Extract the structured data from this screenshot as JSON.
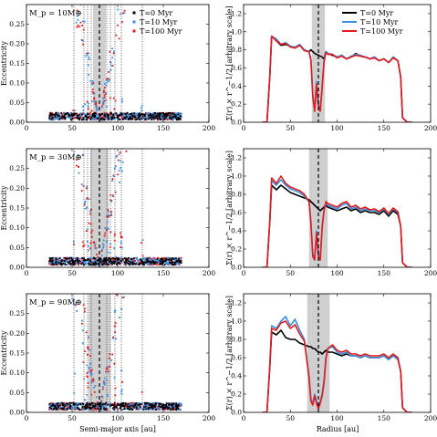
{
  "figure": {
    "left_xlabel": "Semi-major axis [au]",
    "right_xlabel": "Radius [au]",
    "left_ylabel": "Eccentricity",
    "right_ylabel": "Σ(r) × r^−1/2 [arbitrary scale]"
  },
  "colors": {
    "t0": "#000000",
    "t10": "#3b8fe0",
    "t100": "#e41a1c",
    "band": "#cfcfcf"
  },
  "chart_data": [
    {
      "type": "scatter",
      "panel_label": "M_p = 10M⊕",
      "xlim": [
        0,
        200
      ],
      "ylim": [
        0,
        0.3
      ],
      "xticks": [
        "0",
        "50",
        "100",
        "150",
        "200"
      ],
      "yticks": [
        "0.00",
        "0.05",
        "0.10",
        "0.15",
        "0.20",
        "0.25"
      ],
      "planet_a": 80,
      "band": [
        73,
        87
      ],
      "resonances": [
        52,
        63,
        67,
        71,
        88,
        92,
        97,
        104,
        127
      ],
      "legend": [
        "T=0 Myr",
        "T=10 Myr",
        "T=100 Myr"
      ],
      "series": [
        {
          "name": "T=0 Myr",
          "x_range": [
            25,
            170
          ],
          "e_base": 0.02
        },
        {
          "name": "T=10 Myr",
          "x_range": [
            25,
            170
          ],
          "e_base": 0.02
        },
        {
          "name": "T=100 Myr",
          "x_range": [
            25,
            170
          ],
          "e_base": 0.02
        }
      ]
    },
    {
      "type": "line",
      "xlim": [
        0,
        200
      ],
      "ylim": [
        0,
        1.3
      ],
      "xticks": [
        "0",
        "50",
        "100",
        "150",
        "200"
      ],
      "yticks": [
        "0.0",
        "0.2",
        "0.4",
        "0.6",
        "0.8",
        "1.0",
        "1.2"
      ],
      "planet_a": 80,
      "band": [
        73,
        87
      ],
      "legend": [
        "T=0 Myr",
        "T=10 Myr",
        "T=100 Myr"
      ],
      "x": [
        20,
        25,
        28,
        30,
        35,
        40,
        45,
        50,
        55,
        60,
        65,
        70,
        72,
        74,
        76,
        78,
        80,
        82,
        84,
        86,
        88,
        90,
        95,
        100,
        105,
        110,
        115,
        120,
        125,
        130,
        135,
        140,
        145,
        150,
        155,
        160,
        165,
        168,
        170,
        175,
        180
      ],
      "series": [
        {
          "name": "T=0 Myr",
          "values": [
            0,
            0,
            0.5,
            0.95,
            0.9,
            0.85,
            0.86,
            0.84,
            0.82,
            0.85,
            0.8,
            0.78,
            0.8,
            0.78,
            0.76,
            0.75,
            0.74,
            0.73,
            0.72,
            0.7,
            0.78,
            0.76,
            0.74,
            0.72,
            0.74,
            0.7,
            0.72,
            0.76,
            0.73,
            0.72,
            0.7,
            0.72,
            0.68,
            0.7,
            0.66,
            0.72,
            0.68,
            0.5,
            0.05,
            0,
            0
          ]
        },
        {
          "name": "T=10 Myr",
          "values": [
            0,
            0,
            0.5,
            0.95,
            0.92,
            0.86,
            0.88,
            0.84,
            0.83,
            0.86,
            0.8,
            0.78,
            0.7,
            0.3,
            0.15,
            0.45,
            0.2,
            0.15,
            0.4,
            0.68,
            0.78,
            0.76,
            0.75,
            0.72,
            0.74,
            0.7,
            0.73,
            0.75,
            0.74,
            0.72,
            0.7,
            0.72,
            0.68,
            0.7,
            0.66,
            0.72,
            0.68,
            0.5,
            0.05,
            0,
            0
          ]
        },
        {
          "name": "T=100 Myr",
          "values": [
            0,
            0,
            0.5,
            0.95,
            0.9,
            0.86,
            0.87,
            0.83,
            0.82,
            0.85,
            0.79,
            0.78,
            0.68,
            0.28,
            0.12,
            0.42,
            0.18,
            0.12,
            0.38,
            0.66,
            0.77,
            0.75,
            0.75,
            0.71,
            0.73,
            0.7,
            0.72,
            0.74,
            0.73,
            0.72,
            0.7,
            0.71,
            0.68,
            0.7,
            0.66,
            0.71,
            0.68,
            0.5,
            0.05,
            0,
            0
          ]
        }
      ]
    },
    {
      "type": "scatter",
      "panel_label": "M_p = 30M⊕",
      "xlim": [
        0,
        200
      ],
      "ylim": [
        0,
        0.3
      ],
      "xticks": [
        "0",
        "50",
        "100",
        "150",
        "200"
      ],
      "yticks": [
        "0.00",
        "0.05",
        "0.10",
        "0.15",
        "0.20",
        "0.25"
      ],
      "planet_a": 80,
      "band": [
        70,
        90
      ],
      "resonances": [
        52,
        63,
        67,
        71,
        88,
        92,
        97,
        104,
        127
      ],
      "series": [
        {
          "name": "T=0 Myr",
          "x_range": [
            25,
            170
          ],
          "e_base": 0.02
        },
        {
          "name": "T=10 Myr",
          "x_range": [
            25,
            170
          ],
          "e_base": 0.02
        },
        {
          "name": "T=100 Myr",
          "x_range": [
            25,
            170
          ],
          "e_base": 0.02
        }
      ]
    },
    {
      "type": "line",
      "xlim": [
        0,
        200
      ],
      "ylim": [
        0,
        1.3
      ],
      "xticks": [
        "0",
        "50",
        "100",
        "150",
        "200"
      ],
      "yticks": [
        "0.0",
        "0.2",
        "0.4",
        "0.6",
        "0.8",
        "1.0",
        "1.2"
      ],
      "planet_a": 80,
      "band": [
        70,
        90
      ],
      "x": [
        20,
        25,
        28,
        30,
        35,
        40,
        45,
        50,
        55,
        60,
        65,
        70,
        72,
        74,
        76,
        78,
        80,
        82,
        84,
        86,
        88,
        90,
        95,
        100,
        105,
        110,
        115,
        120,
        125,
        130,
        135,
        140,
        145,
        150,
        155,
        160,
        165,
        168,
        170,
        175,
        180
      ],
      "series": [
        {
          "name": "T=0 Myr",
          "values": [
            0,
            0,
            0.5,
            0.9,
            0.85,
            0.9,
            0.86,
            0.82,
            0.8,
            0.78,
            0.76,
            0.74,
            0.72,
            0.7,
            0.68,
            0.66,
            0.64,
            0.62,
            0.64,
            0.66,
            0.68,
            0.66,
            0.64,
            0.62,
            0.64,
            0.66,
            0.62,
            0.64,
            0.6,
            0.62,
            0.6,
            0.6,
            0.58,
            0.62,
            0.56,
            0.62,
            0.58,
            0.45,
            0.05,
            0,
            0
          ]
        },
        {
          "name": "T=10 Myr",
          "values": [
            0,
            0,
            0.5,
            0.95,
            0.9,
            0.96,
            0.9,
            0.86,
            0.84,
            0.82,
            0.78,
            0.72,
            0.5,
            0.15,
            0.1,
            0.4,
            0.15,
            0.1,
            0.45,
            0.62,
            0.7,
            0.68,
            0.66,
            0.64,
            0.68,
            0.7,
            0.64,
            0.66,
            0.62,
            0.64,
            0.62,
            0.62,
            0.6,
            0.64,
            0.58,
            0.64,
            0.6,
            0.45,
            0.05,
            0,
            0
          ]
        },
        {
          "name": "T=100 Myr",
          "values": [
            0,
            0,
            0.5,
            0.98,
            0.92,
            1.0,
            0.92,
            0.88,
            0.86,
            0.84,
            0.8,
            0.72,
            0.48,
            0.12,
            0.08,
            0.38,
            0.12,
            0.08,
            0.43,
            0.62,
            0.72,
            0.7,
            0.68,
            0.66,
            0.7,
            0.72,
            0.66,
            0.68,
            0.64,
            0.66,
            0.63,
            0.64,
            0.61,
            0.65,
            0.59,
            0.65,
            0.61,
            0.45,
            0.05,
            0,
            0
          ]
        }
      ]
    },
    {
      "type": "scatter",
      "panel_label": "M_p = 90M⊕",
      "xlim": [
        0,
        200
      ],
      "ylim": [
        0,
        0.3
      ],
      "xticks": [
        "0",
        "50",
        "100",
        "150",
        "200"
      ],
      "yticks": [
        "0.00",
        "0.05",
        "0.10",
        "0.15",
        "0.20",
        "0.25"
      ],
      "planet_a": 80,
      "band": [
        68,
        92
      ],
      "resonances": [
        52,
        63,
        67,
        71,
        88,
        92,
        97,
        104,
        127
      ],
      "series": [
        {
          "name": "T=0 Myr",
          "x_range": [
            25,
            170
          ],
          "e_base": 0.02
        },
        {
          "name": "T=10 Myr",
          "x_range": [
            25,
            170
          ],
          "e_base": 0.02
        },
        {
          "name": "T=100 Myr",
          "x_range": [
            25,
            170
          ],
          "e_base": 0.02
        }
      ]
    },
    {
      "type": "line",
      "xlim": [
        0,
        200
      ],
      "ylim": [
        0,
        1.3
      ],
      "xticks": [
        "0",
        "50",
        "100",
        "150",
        "200"
      ],
      "yticks": [
        "0.0",
        "0.2",
        "0.4",
        "0.6",
        "0.8",
        "1.0",
        "1.2"
      ],
      "planet_a": 80,
      "band": [
        68,
        92
      ],
      "x": [
        20,
        25,
        28,
        30,
        35,
        40,
        45,
        50,
        55,
        60,
        65,
        70,
        72,
        74,
        76,
        78,
        80,
        82,
        84,
        86,
        88,
        90,
        95,
        100,
        105,
        110,
        115,
        120,
        125,
        130,
        135,
        140,
        145,
        150,
        155,
        160,
        165,
        168,
        170,
        175,
        180
      ],
      "series": [
        {
          "name": "T=0 Myr",
          "values": [
            0,
            0,
            0.5,
            0.88,
            0.85,
            0.9,
            0.82,
            0.8,
            0.8,
            0.76,
            0.74,
            0.72,
            0.72,
            0.7,
            0.7,
            0.68,
            0.66,
            0.66,
            0.64,
            0.66,
            0.68,
            0.66,
            0.66,
            0.64,
            0.62,
            0.64,
            0.62,
            0.62,
            0.6,
            0.62,
            0.6,
            0.6,
            0.6,
            0.62,
            0.58,
            0.62,
            0.58,
            0.45,
            0.05,
            0,
            0
          ]
        },
        {
          "name": "T=10 Myr",
          "values": [
            0,
            0,
            0.5,
            0.95,
            0.92,
            1.0,
            1.05,
            0.95,
            1.02,
            0.9,
            0.8,
            0.4,
            0.15,
            0.1,
            0.2,
            0.12,
            0.05,
            0.12,
            0.2,
            0.35,
            0.6,
            0.7,
            0.72,
            0.66,
            0.64,
            0.66,
            0.62,
            0.62,
            0.6,
            0.62,
            0.6,
            0.6,
            0.6,
            0.62,
            0.58,
            0.62,
            0.58,
            0.45,
            0.05,
            0,
            0
          ]
        },
        {
          "name": "T=100 Myr",
          "values": [
            0,
            0,
            0.5,
            0.92,
            0.9,
            0.98,
            1.0,
            0.92,
            0.96,
            0.86,
            0.78,
            0.38,
            0.12,
            0.08,
            0.18,
            0.1,
            0.04,
            0.1,
            0.18,
            0.32,
            0.58,
            0.7,
            0.74,
            0.68,
            0.66,
            0.68,
            0.64,
            0.64,
            0.62,
            0.64,
            0.62,
            0.62,
            0.62,
            0.64,
            0.6,
            0.64,
            0.6,
            0.45,
            0.05,
            0,
            0
          ]
        }
      ]
    }
  ]
}
